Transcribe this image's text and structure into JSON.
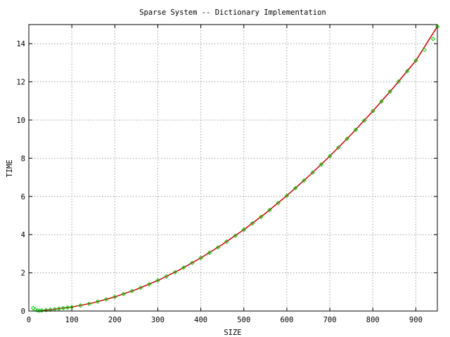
{
  "chart_data": {
    "type": "line",
    "title": "Sparse System -- Dictionary Implementation",
    "xlabel": "SIZE",
    "ylabel": "TIME",
    "xlim": [
      0,
      950
    ],
    "ylim": [
      0,
      15
    ],
    "xticks": [
      0,
      100,
      200,
      300,
      400,
      500,
      600,
      700,
      800,
      900
    ],
    "yticks": [
      0,
      2,
      4,
      6,
      8,
      10,
      12,
      14
    ],
    "grid": true,
    "legend": "none",
    "series": [
      {
        "style": "points",
        "color": "#00cc00",
        "marker": "diamond",
        "x": [
          10,
          15,
          20,
          25,
          30,
          40,
          50,
          60,
          70,
          80,
          90,
          100,
          120,
          140,
          160,
          180,
          200,
          220,
          240,
          260,
          280,
          300,
          320,
          340,
          360,
          380,
          400,
          420,
          440,
          460,
          480,
          500,
          520,
          540,
          560,
          580,
          600,
          620,
          640,
          660,
          680,
          700,
          720,
          740,
          760,
          780,
          800,
          820,
          840,
          860,
          880,
          900,
          920,
          940,
          950
        ],
        "values": [
          0.15,
          0.08,
          0.03,
          0.02,
          0.03,
          0.05,
          0.07,
          0.09,
          0.12,
          0.15,
          0.18,
          0.21,
          0.29,
          0.38,
          0.49,
          0.61,
          0.74,
          0.89,
          1.05,
          1.22,
          1.4,
          1.6,
          1.81,
          2.03,
          2.27,
          2.52,
          2.78,
          3.05,
          3.33,
          3.63,
          3.94,
          4.26,
          4.59,
          4.93,
          5.29,
          5.66,
          6.04,
          6.43,
          6.83,
          7.25,
          7.67,
          8.11,
          8.56,
          9.02,
          9.49,
          9.97,
          10.47,
          10.97,
          11.49,
          12.02,
          12.56,
          13.11,
          13.67,
          14.25,
          14.9
        ]
      },
      {
        "style": "line",
        "color": "#cc0000",
        "x": [
          30,
          50,
          100,
          150,
          200,
          250,
          300,
          350,
          400,
          450,
          500,
          550,
          600,
          650,
          700,
          750,
          800,
          850,
          900,
          950
        ],
        "values": [
          0.03,
          0.07,
          0.21,
          0.43,
          0.74,
          1.13,
          1.6,
          2.15,
          2.78,
          3.48,
          4.26,
          5.11,
          6.04,
          7.04,
          8.11,
          9.25,
          10.47,
          11.75,
          13.11,
          14.9
        ]
      }
    ]
  }
}
